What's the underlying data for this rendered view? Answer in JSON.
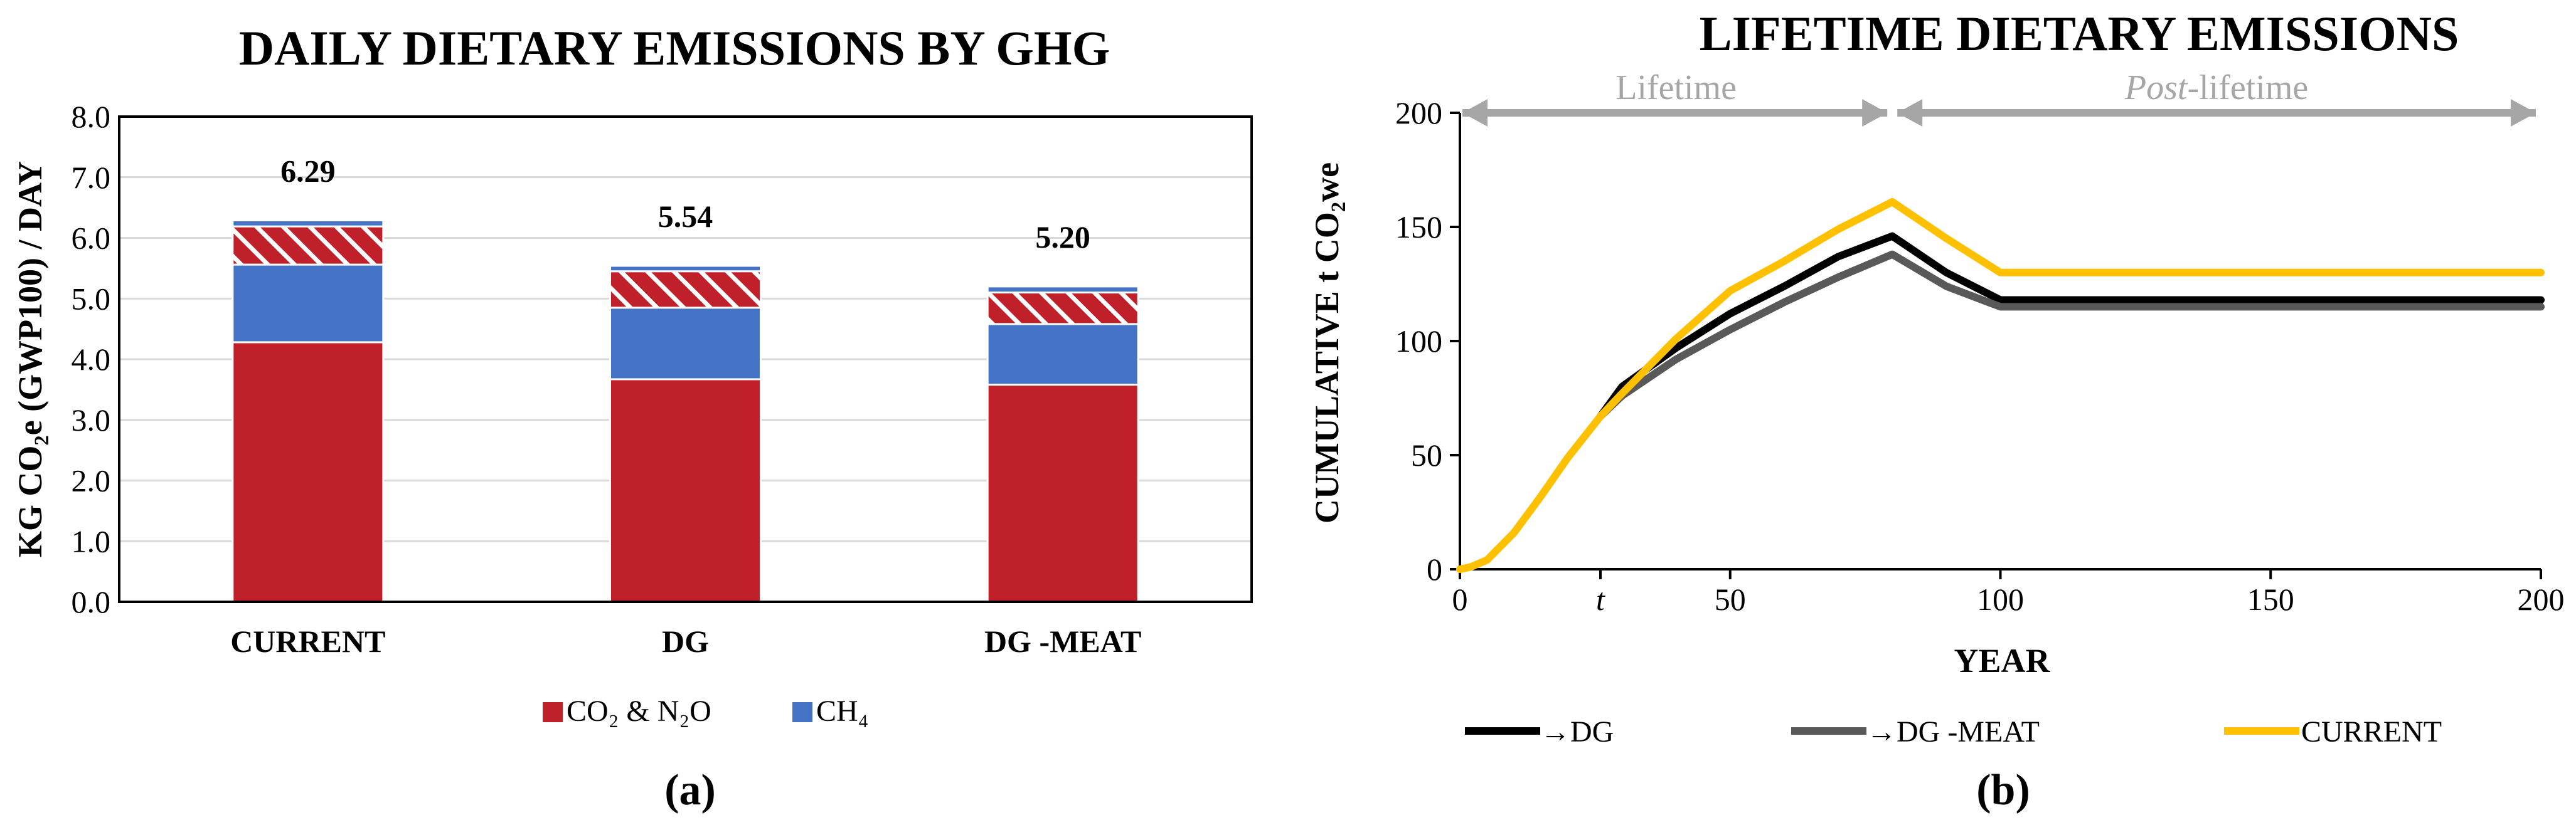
{
  "chart_data": [
    {
      "type": "bar",
      "stacked": true,
      "title": "DAILY DIETARY EMISSIONS BY GHG",
      "ylabel": "KG CO₂e (GWP100) / DAY",
      "ylim": [
        0,
        8
      ],
      "yticks": [
        "0.0",
        "1.0",
        "2.0",
        "3.0",
        "4.0",
        "5.0",
        "6.0",
        "7.0",
        "8.0"
      ],
      "categories": [
        "CURRENT",
        "DG",
        "DG -MEAT"
      ],
      "totals": [
        "6.29",
        "5.54",
        "5.20"
      ],
      "series": [
        {
          "name": "CO₂ & N₂O",
          "color": "#c0202a",
          "values": [
            4.28,
            3.67,
            3.58
          ]
        },
        {
          "name": "CH₄",
          "color": "#4472c4",
          "values": [
            1.28,
            1.18,
            1.0
          ]
        },
        {
          "name": "",
          "color": "#c0202a",
          "pattern": "hatched",
          "values": [
            0.63,
            0.6,
            0.52
          ]
        },
        {
          "name": "",
          "color": "#4472c4",
          "values": [
            0.1,
            0.09,
            0.1
          ]
        }
      ],
      "panel_label": "(a)"
    },
    {
      "type": "line",
      "title": "LIFETIME DIETARY EMISSIONS",
      "xlabel": "YEAR",
      "ylabel": "CUMULATIVE t CO₂we",
      "xlim": [
        0,
        200
      ],
      "ylim": [
        0,
        200
      ],
      "xticks": [
        "0",
        "t",
        "50",
        "100",
        "150",
        "200"
      ],
      "yticks": [
        "0",
        "50",
        "100",
        "150",
        "200"
      ],
      "phases": {
        "lifetime": "Lifetime",
        "post_prefix": "Post",
        "post_suffix": "-lifetime",
        "split_year": 80
      },
      "series": [
        {
          "name": "→DG",
          "color": "#000000",
          "x": [
            26,
            30,
            40,
            50,
            60,
            70,
            80,
            90,
            100,
            200
          ],
          "y": [
            67,
            80,
            97,
            112,
            124,
            137,
            146,
            130,
            118,
            118
          ]
        },
        {
          "name": "→DG -MEAT",
          "color": "#595959",
          "x": [
            26,
            30,
            40,
            50,
            60,
            70,
            80,
            90,
            100,
            200
          ],
          "y": [
            67,
            76,
            92,
            105,
            117,
            128,
            138,
            124,
            115,
            115
          ]
        },
        {
          "name": "CURRENT",
          "color": "#ffc000",
          "x": [
            0,
            2,
            5,
            10,
            15,
            20,
            26,
            30,
            40,
            50,
            60,
            70,
            80,
            90,
            100,
            200
          ],
          "y": [
            0,
            1,
            4,
            16,
            32,
            49,
            67,
            77,
            101,
            122,
            135,
            149,
            161,
            145,
            130,
            130
          ]
        }
      ],
      "panel_label": "(b)"
    }
  ]
}
